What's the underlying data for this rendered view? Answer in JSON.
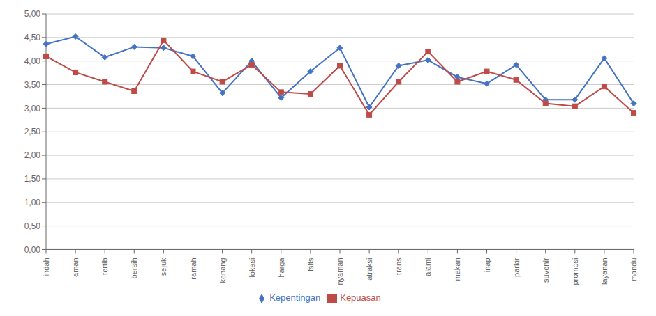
{
  "chart_data": {
    "type": "line",
    "categories": [
      "indah",
      "aman",
      "tertib",
      "bersih",
      "sejuk",
      "ramah",
      "kenang",
      "lokasi",
      "harga",
      "fslts",
      "nyaman",
      "atraksi",
      "trans",
      "alami",
      "makan",
      "inap",
      "parkir",
      "suvenir",
      "promosi",
      "layanan",
      "mandu"
    ],
    "series": [
      {
        "name": "Kepentingan",
        "color": "#4472C4",
        "marker": "diamond",
        "values": [
          4.36,
          4.52,
          4.08,
          4.3,
          4.28,
          4.1,
          3.32,
          4.0,
          3.22,
          3.78,
          4.28,
          3.02,
          3.9,
          4.02,
          3.66,
          3.52,
          3.92,
          3.18,
          3.18,
          4.06,
          3.1
        ]
      },
      {
        "name": "Kepuasan",
        "color": "#BE4B48",
        "marker": "square",
        "values": [
          4.1,
          3.76,
          3.56,
          3.36,
          4.44,
          3.78,
          3.56,
          3.92,
          3.34,
          3.3,
          3.9,
          2.86,
          3.56,
          4.2,
          3.56,
          3.78,
          3.6,
          3.1,
          3.04,
          3.46,
          2.9
        ]
      }
    ],
    "ylim": [
      0.0,
      5.0
    ],
    "yticks": [
      {
        "value": 0.0,
        "label": "0,00"
      },
      {
        "value": 0.5,
        "label": "0,50"
      },
      {
        "value": 1.0,
        "label": "1,00"
      },
      {
        "value": 1.5,
        "label": "1,50"
      },
      {
        "value": 2.0,
        "label": "2,00"
      },
      {
        "value": 2.5,
        "label": "2,50"
      },
      {
        "value": 3.0,
        "label": "3,00"
      },
      {
        "value": 3.5,
        "label": "3,50"
      },
      {
        "value": 4.0,
        "label": "4,00"
      },
      {
        "value": 4.5,
        "label": "4,50"
      },
      {
        "value": 5.0,
        "label": "5,00"
      }
    ],
    "grid": true,
    "legend": "bottom"
  }
}
